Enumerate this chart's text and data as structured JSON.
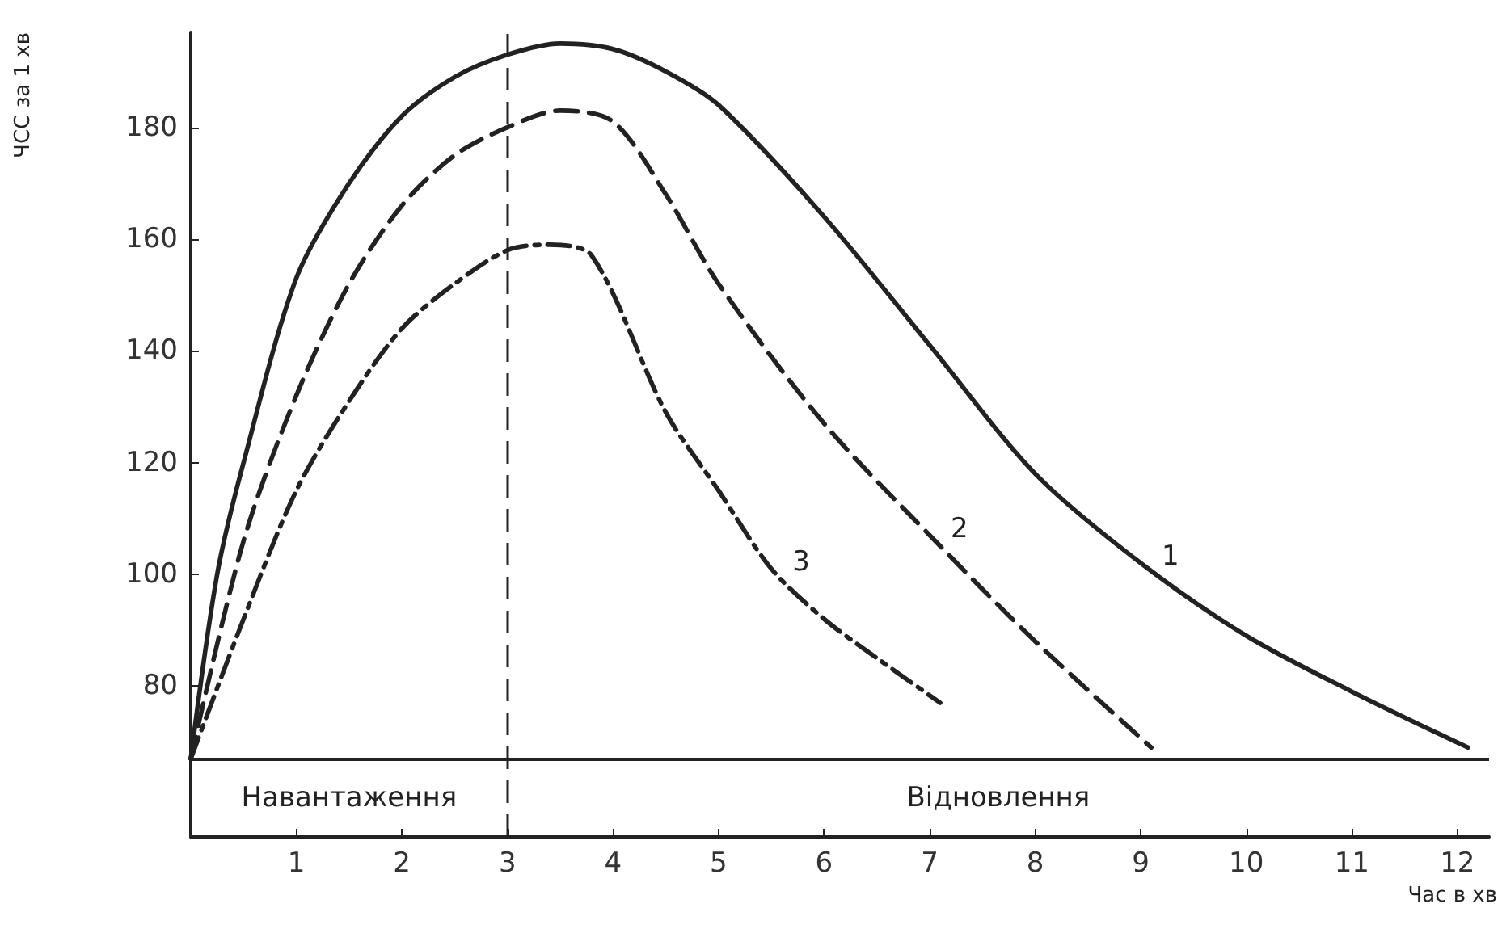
{
  "chart_data": {
    "type": "line",
    "ylabel": "ЧСС за 1 хв",
    "xlabel": "Час в хв",
    "xlim": [
      0,
      12.3
    ],
    "xticks": [
      1,
      2,
      3,
      4,
      5,
      6,
      7,
      8,
      9,
      10,
      11,
      12
    ],
    "ylim": [
      53,
      197
    ],
    "yticks": [
      80,
      100,
      120,
      140,
      160,
      180
    ],
    "grid": false,
    "legend": false,
    "marker": "none",
    "series": [
      {
        "name": "1",
        "color": "#222222",
        "line_style": "solid",
        "x": [
          0,
          0.25,
          0.5,
          1,
          1.5,
          2,
          2.5,
          3,
          3.5,
          4,
          4.5,
          5,
          6,
          7,
          8,
          9,
          10,
          11,
          12.1
        ],
        "values": [
          67,
          100,
          120,
          153,
          170,
          182,
          189,
          193,
          195,
          194,
          190,
          184,
          164,
          141,
          118,
          102,
          89,
          79,
          69
        ]
      },
      {
        "name": "2",
        "color": "#222222",
        "line_style": "dashed",
        "x": [
          0,
          0.5,
          1,
          1.5,
          2,
          2.5,
          3,
          3.5,
          4,
          4.5,
          5,
          6,
          7,
          8,
          9.1
        ],
        "values": [
          67,
          106,
          132,
          152,
          166,
          175,
          180,
          183,
          181,
          168,
          152,
          127,
          107,
          88,
          69
        ]
      },
      {
        "name": "3",
        "color": "#222222",
        "line_style": "dashdot",
        "x": [
          0,
          0.5,
          1,
          1.5,
          2,
          2.5,
          3,
          3.4,
          3.8,
          4.5,
          5,
          5.5,
          6,
          6.5,
          7.1
        ],
        "values": [
          67,
          92,
          115,
          131,
          144,
          152,
          158,
          159,
          157,
          129,
          115,
          101,
          92,
          85,
          77
        ]
      }
    ],
    "ref_lines": [
      {
        "axis": "x",
        "value": 3,
        "line_style": "dashed"
      },
      {
        "axis": "y",
        "value": 67,
        "line_style": "solid"
      }
    ],
    "annotations": [
      "Навантаження",
      "Відновлення"
    ]
  }
}
